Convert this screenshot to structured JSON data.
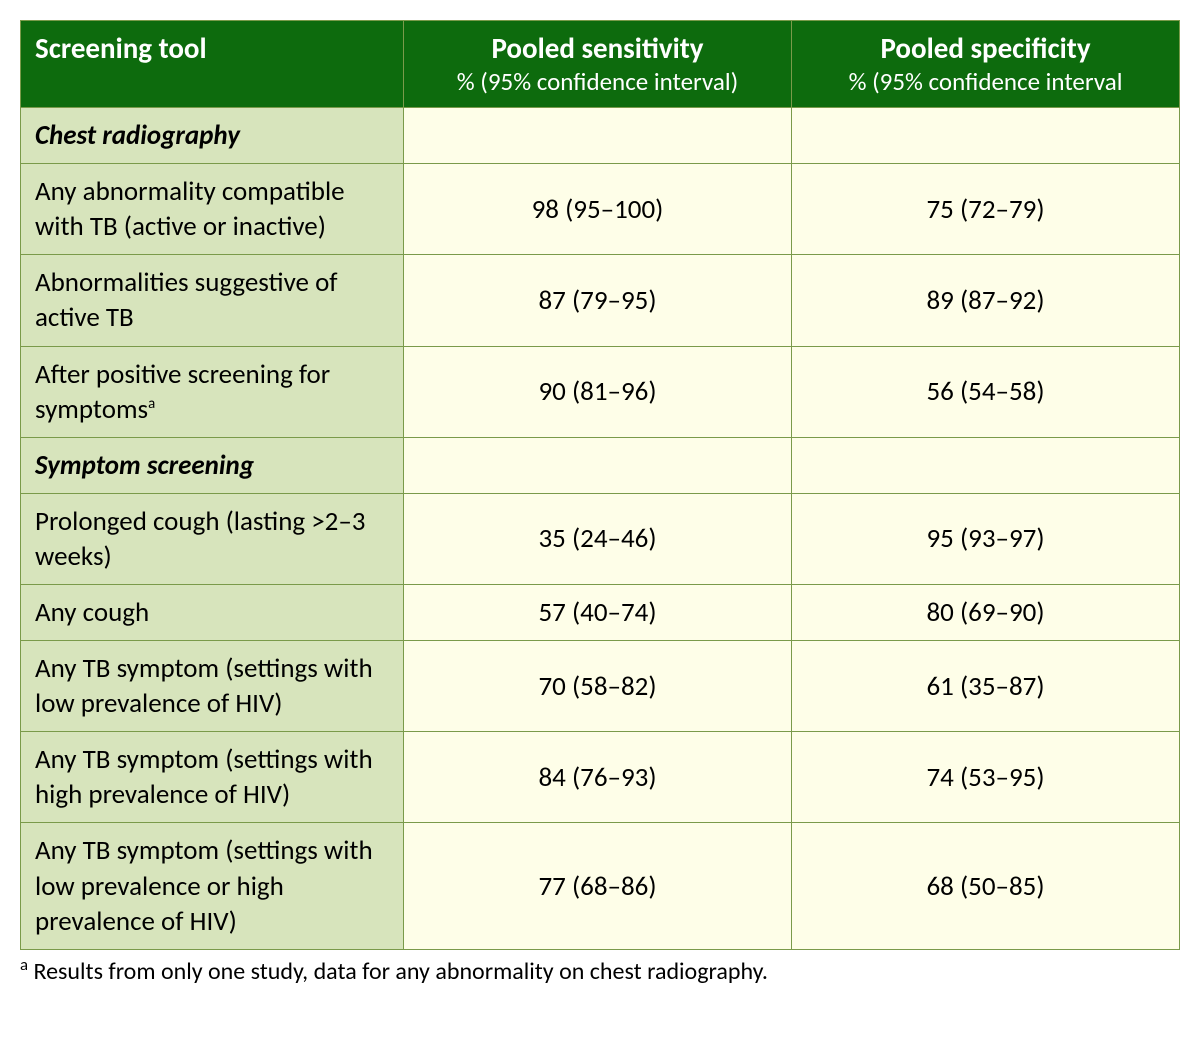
{
  "table": {
    "header_bg": "#0d6b0d",
    "header_color": "#ffffff",
    "label_bg": "#d7e4bc",
    "value_bg": "#fefee8",
    "border_color": "#7a9a4a",
    "font_family": "Calibri, 'Segoe UI', Arial, sans-serif",
    "header_title_fontsize": 29,
    "header_sub_fontsize": 25,
    "body_fontsize": 27,
    "columns": [
      {
        "title": "Screening tool",
        "subtitle": ""
      },
      {
        "title": "Pooled sensitivity",
        "subtitle": "% (95% confidence interval)"
      },
      {
        "title": "Pooled specificity",
        "subtitle": "% (95% confidence interval"
      }
    ],
    "rows": [
      {
        "type": "section",
        "label": "Chest radiography"
      },
      {
        "type": "data",
        "label": "Any abnormality compatible with TB (active or inactive)",
        "sup": "",
        "sensitivity": "98 (95–100)",
        "specificity": "75 (72–79)"
      },
      {
        "type": "data",
        "label": "Abnormalities suggestive of active TB",
        "sup": "",
        "sensitivity": "87 (79–95)",
        "specificity": "89 (87–92)"
      },
      {
        "type": "data",
        "label": "After positive screening for symptoms",
        "sup": "a",
        "sensitivity": "90 (81–96)",
        "specificity": "56 (54–58)"
      },
      {
        "type": "section",
        "label": "Symptom screening"
      },
      {
        "type": "data",
        "label": "Prolonged cough (lasting >2–3 weeks)",
        "sup": "",
        "sensitivity": "35 (24–46)",
        "specificity": "95 (93–97)"
      },
      {
        "type": "data",
        "label": "Any cough",
        "sup": "",
        "sensitivity": "57 (40–74)",
        "specificity": "80 (69–90)"
      },
      {
        "type": "data",
        "label": "Any TB symptom (settings with low prevalence of HIV)",
        "sup": "",
        "sensitivity": "70 (58–82)",
        "specificity": "61 (35–87)"
      },
      {
        "type": "data",
        "label": "Any TB symptom (settings with high prevalence of HIV)",
        "sup": "",
        "sensitivity": "84 (76–93)",
        "specificity": "74 (53–95)"
      },
      {
        "type": "data",
        "label": "Any TB symptom (settings with low prevalence or high prevalence of HIV)",
        "sup": "",
        "sensitivity": "77 (68–86)",
        "specificity": "68 (50–85)"
      }
    ]
  },
  "footnote": {
    "marker": "a",
    "text": " Results from only one study, data for any abnormality on chest radiography.",
    "fontsize": 24
  }
}
